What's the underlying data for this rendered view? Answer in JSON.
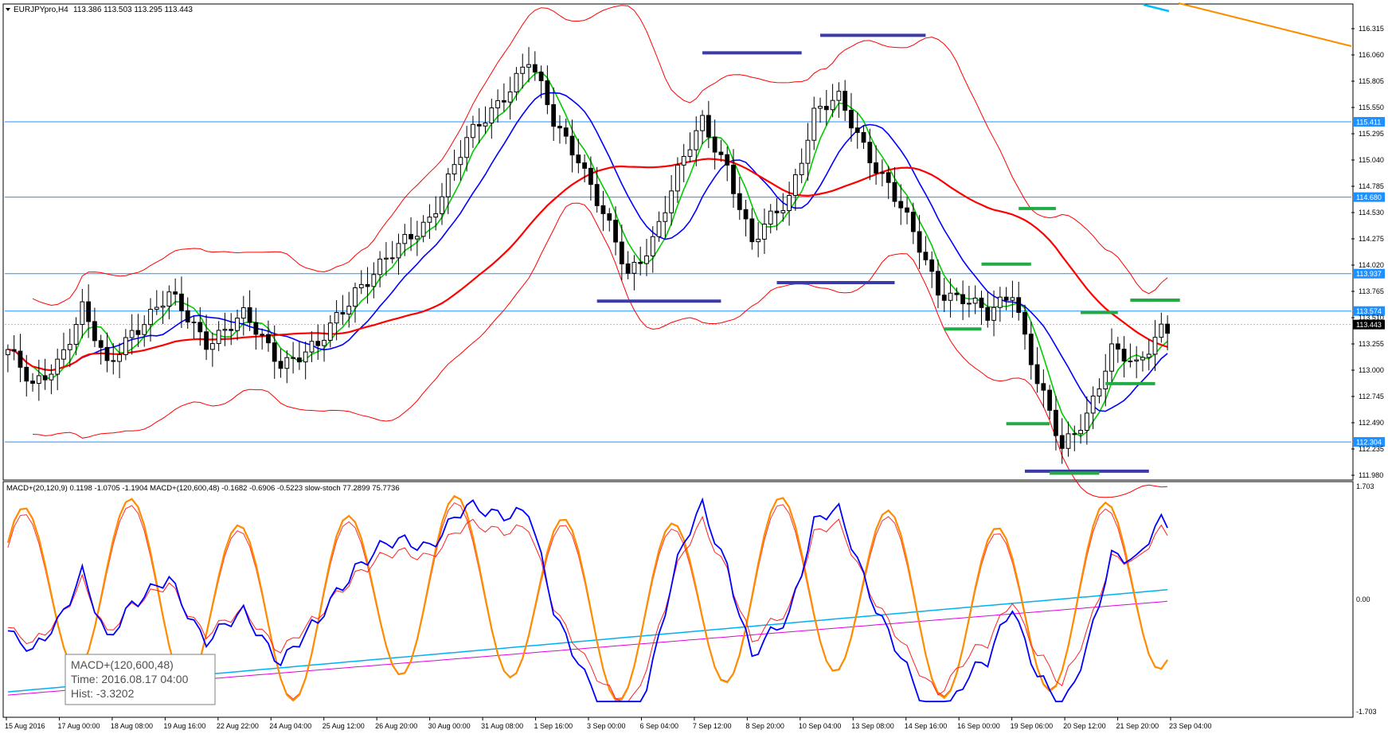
{
  "main_panel": {
    "header": {
      "symbol": "EURJPYpro,H4",
      "ohlc": "113.386 113.503 113.295 113.443"
    },
    "price_labels": [
      "116.315",
      "116.060",
      "115.805",
      "115.550",
      "115.295",
      "115.040",
      "114.785",
      "114.530",
      "114.275",
      "114.020",
      "113.765",
      "113.510",
      "113.255",
      "113.000",
      "112.745",
      "112.490",
      "112.235",
      "111.980"
    ],
    "hlines": [
      {
        "price": 115.411,
        "label": "115.411"
      },
      {
        "price": 114.68,
        "label": "114.680"
      },
      {
        "price": 113.937,
        "label": "113.937"
      },
      {
        "price": 113.574,
        "label": "113.574"
      },
      {
        "price": 112.304,
        "label": "112.304"
      }
    ],
    "current_price": {
      "price": 113.443,
      "label": "113.443"
    },
    "colors": {
      "hline": "#1e90ff",
      "fast_ma": "#00cc00",
      "mid_ma": "#0000ff",
      "slow_ma": "#ff0000",
      "band": "#ff0000",
      "support": "#3a3aa8",
      "pivot": "#22aa44"
    }
  },
  "macd_panel": {
    "header": "MACD+(20,120,9) 0.1198 -1.0705 -1.1904   MACD+(120,600,48) -0.1682 -0.6906 -0.5223   slow-stoch 77.2899 75.7736",
    "scale": {
      "top": "1.703",
      "zero": "0.00",
      "bottom": "-1.703"
    },
    "tooltip": {
      "line1": "MACD+(120,600,48)",
      "line2": "Time: 2016.08.17 04:00",
      "line3": "Hist: -3.3202"
    }
  },
  "time_axis": [
    "15 Aug 2016",
    "17 Aug 00:00",
    "18 Aug 08:00",
    "19 Aug 16:00",
    "22 Aug 22:00",
    "24 Aug 04:00",
    "25 Aug 12:00",
    "26 Aug 20:00",
    "30 Aug 00:00",
    "31 Aug 08:00",
    "1 Sep 16:00",
    "3 Sep 00:00",
    "6 Sep 04:00",
    "7 Sep 12:00",
    "8 Sep 20:00",
    "10 Sep 04:00",
    "13 Sep 08:00",
    "14 Sep 16:00",
    "16 Sep 00:00",
    "19 Sep 06:00",
    "20 Sep 12:00",
    "21 Sep 20:00",
    "23 Sep 04:00"
  ],
  "chart_data": {
    "type": "candlestick",
    "symbol": "EURJPY",
    "timeframe": "H4",
    "ylim": [
      111.98,
      116.315
    ],
    "key_points": [
      {
        "index": 0,
        "price": 113.2
      },
      {
        "index": 4,
        "price": 112.8
      },
      {
        "index": 8,
        "price": 113.1
      },
      {
        "index": 12,
        "price": 113.6
      },
      {
        "index": 16,
        "price": 113.0
      },
      {
        "index": 20,
        "price": 113.4
      },
      {
        "index": 26,
        "price": 113.7
      },
      {
        "index": 32,
        "price": 113.3
      },
      {
        "index": 38,
        "price": 113.5
      },
      {
        "index": 44,
        "price": 113.1
      },
      {
        "index": 50,
        "price": 113.2
      },
      {
        "index": 56,
        "price": 113.8
      },
      {
        "index": 62,
        "price": 114.1
      },
      {
        "index": 68,
        "price": 114.5
      },
      {
        "index": 74,
        "price": 115.2
      },
      {
        "index": 80,
        "price": 115.7
      },
      {
        "index": 84,
        "price": 116.0
      },
      {
        "index": 88,
        "price": 115.4
      },
      {
        "index": 92,
        "price": 115.1
      },
      {
        "index": 96,
        "price": 114.5
      },
      {
        "index": 100,
        "price": 113.9
      },
      {
        "index": 104,
        "price": 114.3
      },
      {
        "index": 108,
        "price": 114.9
      },
      {
        "index": 112,
        "price": 115.4
      },
      {
        "index": 116,
        "price": 115.0
      },
      {
        "index": 120,
        "price": 114.2
      },
      {
        "index": 126,
        "price": 114.7
      },
      {
        "index": 130,
        "price": 115.5
      },
      {
        "index": 134,
        "price": 115.6
      },
      {
        "index": 138,
        "price": 115.2
      },
      {
        "index": 142,
        "price": 114.8
      },
      {
        "index": 146,
        "price": 114.3
      },
      {
        "index": 150,
        "price": 113.8
      },
      {
        "index": 154,
        "price": 113.7
      },
      {
        "index": 158,
        "price": 113.5
      },
      {
        "index": 162,
        "price": 113.8
      },
      {
        "index": 166,
        "price": 112.9
      },
      {
        "index": 170,
        "price": 112.2
      },
      {
        "index": 174,
        "price": 112.6
      },
      {
        "index": 178,
        "price": 113.2
      },
      {
        "index": 182,
        "price": 113.0
      },
      {
        "index": 186,
        "price": 113.44
      }
    ],
    "support_levels": [
      {
        "price": 113.67,
        "from": 95,
        "to": 115
      },
      {
        "price": 113.85,
        "from": 124,
        "to": 143
      },
      {
        "price": 116.08,
        "from": 112,
        "to": 128
      },
      {
        "price": 116.25,
        "from": 131,
        "to": 148
      },
      {
        "price": 112.02,
        "from": 164,
        "to": 184
      }
    ],
    "pivot_marks": [
      {
        "price": 113.4,
        "from": 151,
        "to": 157
      },
      {
        "price": 114.03,
        "from": 157,
        "to": 165
      },
      {
        "price": 114.57,
        "from": 163,
        "to": 169
      },
      {
        "price": 112.48,
        "from": 161,
        "to": 168
      },
      {
        "price": 112.0,
        "from": 168,
        "to": 176
      },
      {
        "price": 113.56,
        "from": 173,
        "to": 179
      },
      {
        "price": 113.68,
        "from": 181,
        "to": 189
      },
      {
        "price": 112.87,
        "from": 177,
        "to": 185
      }
    ]
  }
}
